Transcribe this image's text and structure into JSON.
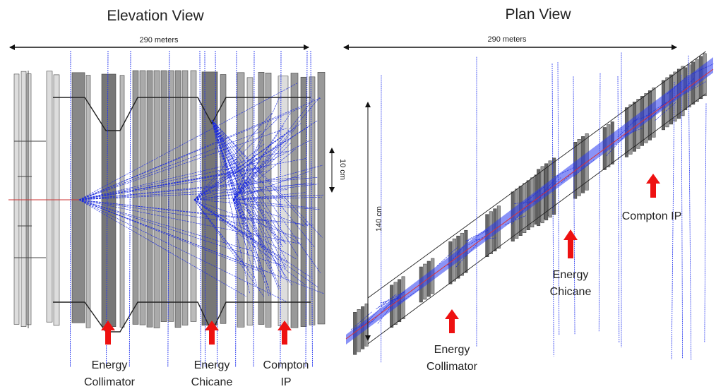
{
  "elevation": {
    "title": "Elevation View",
    "length_label": "290 meters",
    "scale_label": "10 cm",
    "labels": [
      {
        "lines": [
          "Energy",
          "Collimator"
        ]
      },
      {
        "lines": [
          "Energy",
          "Chicane"
        ]
      },
      {
        "lines": [
          "Compton",
          "IP"
        ]
      }
    ]
  },
  "plan": {
    "title": "Plan View",
    "length_label": "290 meters",
    "scale_label": "140 cm",
    "labels": [
      {
        "lines": [
          "Energy",
          "Collimator"
        ]
      },
      {
        "lines": [
          "Energy",
          "Chicane"
        ]
      },
      {
        "lines": [
          "Compton IP"
        ]
      }
    ]
  }
}
